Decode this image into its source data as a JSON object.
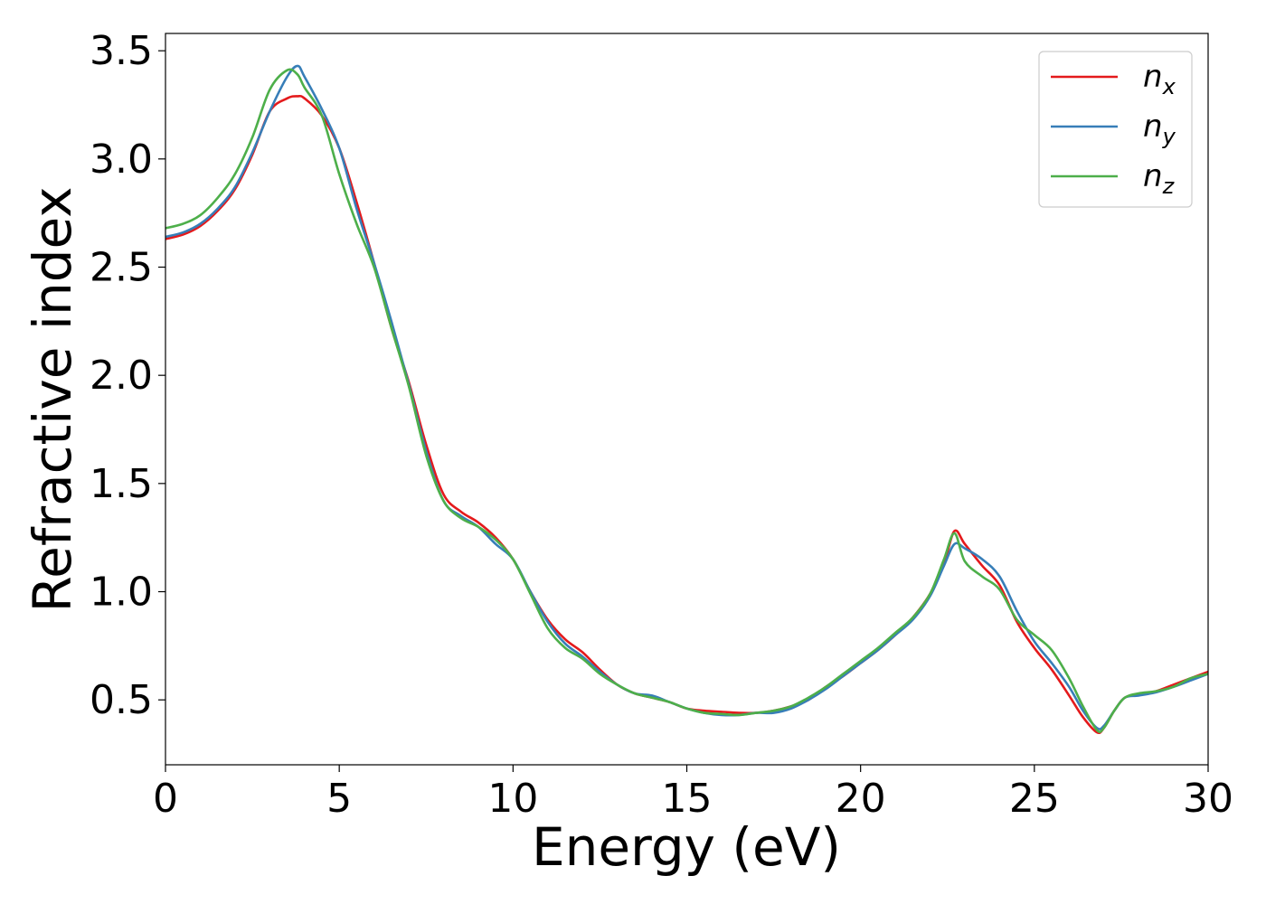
{
  "chart_data": {
    "type": "line",
    "xlabel": "Energy (eV)",
    "ylabel": "Refractive index",
    "xlim": [
      0,
      30
    ],
    "ylim": [
      0.2,
      3.58
    ],
    "xticks": [
      0,
      5,
      10,
      15,
      20,
      25,
      30
    ],
    "xtick_labels": [
      "0",
      "5",
      "10",
      "15",
      "20",
      "25",
      "30"
    ],
    "yticks": [
      0.5,
      1.0,
      1.5,
      2.0,
      2.5,
      3.0,
      3.5
    ],
    "ytick_labels": [
      "0.5",
      "1.0",
      "1.5",
      "2.0",
      "2.5",
      "3.0",
      "3.5"
    ],
    "grid": false,
    "legend_position": "top-right",
    "series": [
      {
        "name": "n_x",
        "label_base": "n",
        "label_sub": "x",
        "color": "#e41a1c",
        "x": [
          0,
          0.5,
          1,
          1.5,
          2,
          2.5,
          3,
          3.5,
          3.8,
          4,
          4.5,
          5,
          5.5,
          6,
          6.5,
          7,
          7.5,
          8,
          8.5,
          9,
          9.5,
          10,
          10.5,
          11,
          11.5,
          12,
          12.5,
          13,
          13.5,
          14,
          14.5,
          15,
          15.5,
          16,
          16.5,
          17,
          17.5,
          18,
          18.5,
          19,
          19.5,
          20,
          20.5,
          21,
          21.5,
          22,
          22.4,
          22.7,
          23,
          23.5,
          24,
          24.5,
          25,
          25.5,
          26,
          26.4,
          26.8,
          27,
          27.3,
          27.6,
          28,
          28.5,
          29,
          29.5,
          30
        ],
        "y": [
          2.63,
          2.65,
          2.69,
          2.76,
          2.86,
          3.02,
          3.22,
          3.28,
          3.29,
          3.28,
          3.2,
          3.05,
          2.8,
          2.52,
          2.22,
          1.97,
          1.68,
          1.45,
          1.37,
          1.32,
          1.25,
          1.15,
          1.0,
          0.87,
          0.78,
          0.72,
          0.64,
          0.57,
          0.53,
          0.51,
          0.49,
          0.46,
          0.45,
          0.445,
          0.44,
          0.44,
          0.45,
          0.47,
          0.5,
          0.56,
          0.61,
          0.67,
          0.73,
          0.8,
          0.88,
          0.99,
          1.13,
          1.28,
          1.22,
          1.12,
          1.03,
          0.86,
          0.74,
          0.64,
          0.52,
          0.42,
          0.35,
          0.37,
          0.45,
          0.51,
          0.525,
          0.54,
          0.57,
          0.6,
          0.63
        ]
      },
      {
        "name": "n_y",
        "label_base": "n",
        "label_sub": "y",
        "color": "#377eb8",
        "x": [
          0,
          0.5,
          1,
          1.5,
          2,
          2.5,
          3,
          3.5,
          3.8,
          4,
          4.5,
          5,
          5.5,
          6,
          6.5,
          7,
          7.5,
          8,
          8.5,
          9,
          9.5,
          10,
          10.5,
          11,
          11.5,
          12,
          12.5,
          13,
          13.5,
          14,
          14.5,
          15,
          15.5,
          16,
          16.5,
          17,
          17.5,
          18,
          18.5,
          19,
          19.5,
          20,
          20.5,
          21,
          21.5,
          22,
          22.4,
          22.7,
          23,
          23.5,
          24,
          24.5,
          25,
          25.5,
          26,
          26.4,
          26.8,
          27,
          27.3,
          27.6,
          28,
          28.5,
          29,
          29.5,
          30
        ],
        "y": [
          2.64,
          2.66,
          2.7,
          2.77,
          2.87,
          3.03,
          3.22,
          3.38,
          3.43,
          3.38,
          3.23,
          3.05,
          2.77,
          2.52,
          2.25,
          1.96,
          1.65,
          1.42,
          1.35,
          1.3,
          1.22,
          1.15,
          1.0,
          0.86,
          0.76,
          0.7,
          0.63,
          0.57,
          0.53,
          0.52,
          0.49,
          0.46,
          0.44,
          0.43,
          0.43,
          0.44,
          0.44,
          0.46,
          0.5,
          0.55,
          0.61,
          0.67,
          0.73,
          0.8,
          0.87,
          0.98,
          1.12,
          1.22,
          1.2,
          1.15,
          1.07,
          0.91,
          0.77,
          0.67,
          0.56,
          0.45,
          0.37,
          0.38,
          0.45,
          0.51,
          0.52,
          0.535,
          0.56,
          0.59,
          0.62
        ]
      },
      {
        "name": "n_z",
        "label_base": "n",
        "label_sub": "z",
        "color": "#4daf4a",
        "x": [
          0,
          0.5,
          1,
          1.5,
          2,
          2.5,
          3,
          3.5,
          3.8,
          4,
          4.5,
          5,
          5.5,
          6,
          6.5,
          7,
          7.5,
          8,
          8.5,
          9,
          9.5,
          10,
          10.5,
          11,
          11.5,
          12,
          12.5,
          13,
          13.5,
          14,
          14.5,
          15,
          15.5,
          16,
          16.5,
          17,
          17.5,
          18,
          18.5,
          19,
          19.5,
          20,
          20.5,
          21,
          21.5,
          22,
          22.4,
          22.7,
          23,
          23.5,
          24,
          24.5,
          25,
          25.5,
          26,
          26.4,
          26.8,
          27,
          27.3,
          27.6,
          28,
          28.5,
          29,
          29.5,
          30
        ],
        "y": [
          2.68,
          2.7,
          2.74,
          2.82,
          2.93,
          3.1,
          3.32,
          3.41,
          3.39,
          3.33,
          3.2,
          2.93,
          2.7,
          2.5,
          2.22,
          1.95,
          1.63,
          1.42,
          1.34,
          1.3,
          1.24,
          1.15,
          0.99,
          0.83,
          0.74,
          0.69,
          0.62,
          0.57,
          0.53,
          0.51,
          0.49,
          0.46,
          0.44,
          0.435,
          0.43,
          0.44,
          0.45,
          0.47,
          0.51,
          0.56,
          0.62,
          0.68,
          0.74,
          0.81,
          0.88,
          0.99,
          1.15,
          1.27,
          1.14,
          1.07,
          1.01,
          0.87,
          0.8,
          0.73,
          0.6,
          0.47,
          0.36,
          0.37,
          0.45,
          0.51,
          0.53,
          0.54,
          0.56,
          0.6,
          0.62
        ]
      }
    ]
  }
}
